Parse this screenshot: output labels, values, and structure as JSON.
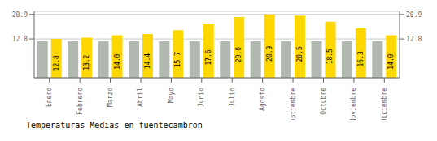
{
  "chart_data": {
    "type": "bar",
    "title": "Temperaturas Medias en fuentecambron",
    "categories": [
      "Enero",
      "Febrero",
      "Marzo",
      "Abril",
      "Mayo",
      "Junio",
      "Julio",
      "Agosto",
      "Septiembre",
      "Octubre",
      "Noviembre",
      "Diciembre"
    ],
    "series": [
      {
        "color": "#B0B8B0",
        "values": [
          12.0,
          12.0,
          12.0,
          12.0,
          12.0,
          12.0,
          12.0,
          12.0,
          12.0,
          12.0,
          12.0,
          12.0
        ]
      },
      {
        "color": "#FFD700",
        "values": [
          12.8,
          13.2,
          14.0,
          14.4,
          15.7,
          17.6,
          20.0,
          20.9,
          20.5,
          18.5,
          16.3,
          14.0
        ],
        "data_labels": true,
        "value_labels": [
          "12.8",
          "13.2",
          "14.0",
          "14.4",
          "15.7",
          "17.6",
          "20.0",
          "20.9",
          "20.5",
          "18.5",
          "16.3",
          "14.0"
        ]
      }
    ],
    "ylim": [
      0,
      21.9
    ],
    "yticks": [
      12.8,
      20.9
    ],
    "grid": true
  }
}
